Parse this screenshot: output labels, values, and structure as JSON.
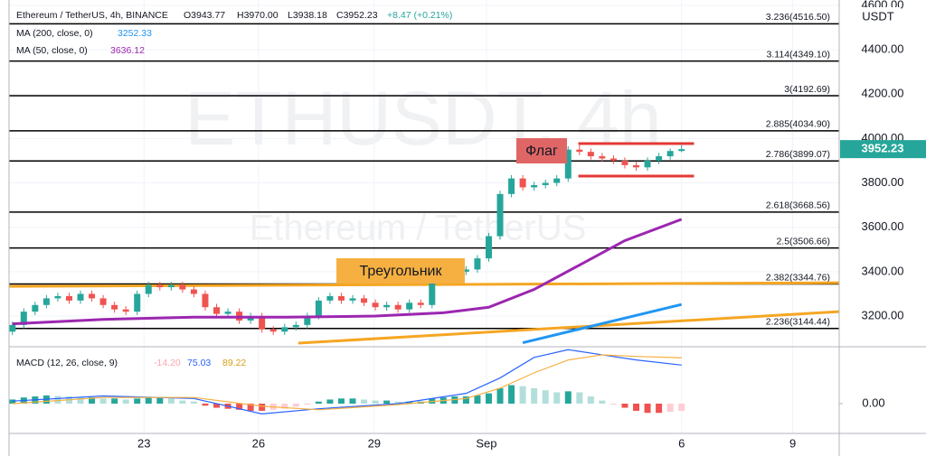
{
  "chart_data": {
    "type": "candlestick",
    "symbol_title": "Ethereum / TetherUS, 4h, BINANCE",
    "ohlc": [
      "O3943.77",
      "H3970.00",
      "L3938.18",
      "C3952.23",
      "+8.47 (+0.21%)"
    ],
    "watermark": "ETHUSDT, 4h",
    "watermark_sub": "Ethereum / TetherUS",
    "currency": "USDT",
    "up_color": "#26a69a",
    "down_color": "#ef5350",
    "open": [
      3130,
      3160,
      3220,
      3250,
      3280,
      3290,
      3270,
      3300,
      3280,
      3250,
      3230,
      3220,
      3300,
      3340,
      3330,
      3340,
      3320,
      3300,
      3240,
      3210,
      3220,
      3180,
      3200,
      3140,
      3130,
      3150,
      3160,
      3200,
      3270,
      3290,
      3270,
      3280,
      3260,
      3240,
      3250,
      3230,
      3260,
      3250,
      3370,
      3380,
      3400,
      3410,
      3460,
      3560,
      3750,
      3820,
      3780,
      3790,
      3800,
      3820,
      3950,
      3940,
      3920,
      3910,
      3900,
      3880,
      3870,
      3900,
      3920,
      3943.77
    ],
    "high": [
      3175,
      3235,
      3265,
      3295,
      3305,
      3305,
      3315,
      3315,
      3295,
      3265,
      3245,
      3315,
      3355,
      3355,
      3355,
      3355,
      3335,
      3315,
      3255,
      3235,
      3235,
      3215,
      3215,
      3155,
      3165,
      3175,
      3215,
      3285,
      3305,
      3305,
      3295,
      3295,
      3275,
      3265,
      3265,
      3275,
      3275,
      3385,
      3395,
      3415,
      3425,
      3475,
      3575,
      3765,
      3835,
      3835,
      3805,
      3815,
      3835,
      3965,
      3970,
      3955,
      3935,
      3925,
      3915,
      3895,
      3915,
      3935,
      3955,
      3970.0
    ],
    "low": [
      3115,
      3145,
      3205,
      3235,
      3265,
      3255,
      3255,
      3265,
      3235,
      3215,
      3205,
      3205,
      3285,
      3315,
      3315,
      3305,
      3285,
      3225,
      3195,
      3195,
      3165,
      3165,
      3125,
      3115,
      3115,
      3135,
      3145,
      3185,
      3255,
      3255,
      3255,
      3245,
      3225,
      3225,
      3215,
      3215,
      3235,
      3235,
      3355,
      3365,
      3385,
      3395,
      3445,
      3545,
      3735,
      3765,
      3765,
      3775,
      3785,
      3805,
      3925,
      3905,
      3895,
      3885,
      3865,
      3855,
      3855,
      3885,
      3905,
      3938.18
    ],
    "close": [
      3160,
      3220,
      3250,
      3280,
      3290,
      3270,
      3300,
      3280,
      3250,
      3230,
      3220,
      3300,
      3340,
      3330,
      3340,
      3320,
      3300,
      3240,
      3210,
      3220,
      3180,
      3200,
      3140,
      3130,
      3150,
      3160,
      3200,
      3270,
      3290,
      3270,
      3280,
      3260,
      3240,
      3250,
      3230,
      3260,
      3250,
      3370,
      3380,
      3400,
      3410,
      3460,
      3560,
      3750,
      3820,
      3780,
      3790,
      3800,
      3820,
      3950,
      3940,
      3920,
      3910,
      3900,
      3880,
      3870,
      3900,
      3920,
      3943.77,
      3952.23
    ],
    "ylim": [
      3066,
      4624
    ],
    "yticks": [
      {
        "value": 3200,
        "label": "3200.00"
      },
      {
        "value": 3400,
        "label": "3400.00"
      },
      {
        "value": 3600,
        "label": "3600.00"
      },
      {
        "value": 3800,
        "label": "3800.00"
      },
      {
        "value": 4000,
        "label": "4000.00"
      },
      {
        "value": 4200,
        "label": "4200.00"
      },
      {
        "value": 4400,
        "label": "4400.00"
      },
      {
        "value": 4600,
        "label": "4600.00"
      }
    ],
    "xlim": [
      -0.3,
      72.9
    ],
    "xticks": [
      {
        "value": 11.6,
        "label": "23"
      },
      {
        "value": 21.7,
        "label": "26"
      },
      {
        "value": 31.9,
        "label": "29"
      },
      {
        "value": 41.8,
        "label": "Sep"
      },
      {
        "value": 59.0,
        "label": "6"
      },
      {
        "value": 68.8,
        "label": "9"
      }
    ],
    "grid": true,
    "ma": [
      {
        "name": "MA (200, close, 0)",
        "value_label": "3252.33",
        "color": "#2196f3",
        "x": [
          45,
          59
        ],
        "values": [
          3080,
          3252.33
        ]
      },
      {
        "name": "MA (50, close, 0)",
        "value_label": "3636.12",
        "color": "#9c27b0",
        "x": [
          0,
          8,
          16,
          24,
          32,
          38,
          42,
          46,
          50,
          54,
          59
        ],
        "values": [
          3165,
          3185,
          3195,
          3195,
          3200,
          3215,
          3240,
          3320,
          3430,
          3540,
          3636.12
        ]
      }
    ],
    "levels": [
      {
        "value": 4516.5,
        "label": "3.236(4516.50)"
      },
      {
        "value": 4349.1,
        "label": "3.114(4349.10)"
      },
      {
        "value": 4192.69,
        "label": "3(4192.69)"
      },
      {
        "value": 4034.9,
        "label": "2.885(4034.90)"
      },
      {
        "value": 3899.07,
        "label": "2.786(3899.07)"
      },
      {
        "value": 3668.56,
        "label": "2.618(3668.56)"
      },
      {
        "value": 3506.66,
        "label": "2.5(3506.66)"
      },
      {
        "value": 3344.76,
        "label": "2.382(3344.76)"
      },
      {
        "value": 3144.44,
        "label": "2.236(3144.44)"
      }
    ],
    "level_color": "#000000",
    "trendlines": [
      {
        "color": "#f5a623",
        "x": [
          -0.3,
          72.9
        ],
        "y": [
          3334,
          3350
        ]
      },
      {
        "color": "#f5a623",
        "x": [
          25.2,
          72.9
        ],
        "y": [
          3078,
          3220
        ]
      },
      {
        "color": "#e53935",
        "x": [
          49.9,
          60.1
        ],
        "y": [
          3977,
          3977
        ]
      },
      {
        "color": "#e53935",
        "x": [
          49.9,
          60.1
        ],
        "y": [
          3831,
          3831
        ]
      }
    ],
    "annotations": [
      "Флаг",
      "Треугольник"
    ],
    "macd": {
      "name": "MACD (12, 26, close, 9)",
      "value_labels": [
        "-14.20",
        "75.03",
        "89.22"
      ],
      "ylim": [
        -58,
        109
      ],
      "yticks": [
        {
          "value": 0,
          "label": "0.00"
        }
      ],
      "histogram": [
        8,
        12,
        14,
        16,
        15,
        14,
        12,
        12,
        10,
        10,
        8,
        10,
        12,
        12,
        10,
        6,
        4,
        -4,
        -8,
        -10,
        -12,
        -14,
        -14,
        -12,
        -10,
        -6,
        -2,
        4,
        8,
        10,
        10,
        8,
        6,
        6,
        4,
        4,
        4,
        10,
        12,
        14,
        14,
        16,
        20,
        30,
        36,
        34,
        30,
        26,
        22,
        24,
        22,
        14,
        6,
        -2,
        -8,
        -14,
        -18,
        -18,
        -16,
        -14.2
      ],
      "macd_line": {
        "color": "#2962ff",
        "x": [
          0,
          8,
          16,
          22,
          27,
          34,
          40,
          43,
          46,
          49,
          52,
          55,
          59
        ],
        "values": [
          5,
          15,
          10,
          -20,
          -10,
          0,
          20,
          50,
          90,
          105,
          95,
          85,
          75.03
        ]
      },
      "signal_line": {
        "color": "#f5b041",
        "x": [
          0,
          8,
          16,
          22,
          27,
          34,
          40,
          43,
          46,
          49,
          52,
          55,
          59
        ],
        "values": [
          0,
          12,
          12,
          -5,
          -12,
          -2,
          10,
          30,
          60,
          85,
          95,
          92,
          89.22
        ]
      }
    }
  }
}
